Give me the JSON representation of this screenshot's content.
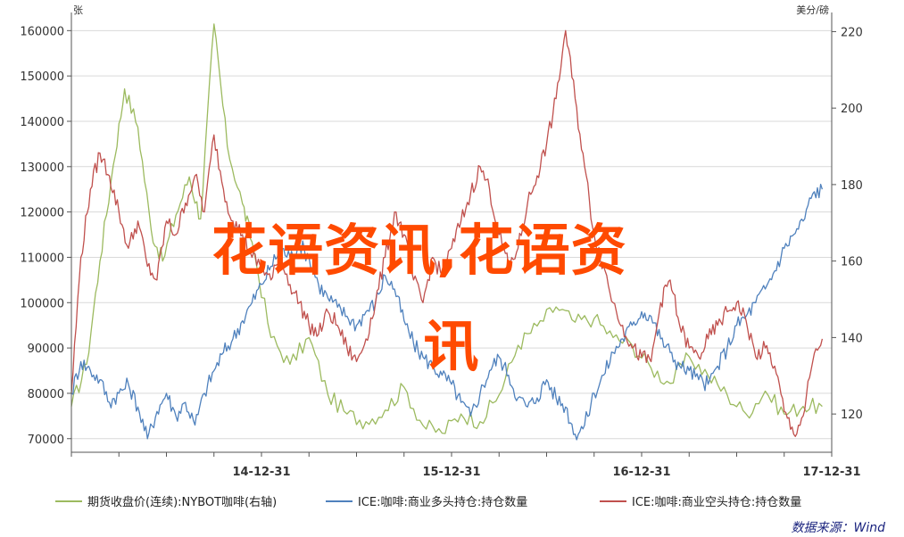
{
  "chart_data": {
    "type": "line",
    "left_axis_unit": "张",
    "right_axis_unit": "美分/磅",
    "yticks_left": [
      "70000",
      "80000",
      "90000",
      "100000",
      "110000",
      "120000",
      "130000",
      "140000",
      "150000",
      "160000"
    ],
    "ylim_left": [
      67000,
      164000
    ],
    "yticks_right": [
      "120",
      "140",
      "160",
      "180",
      "200",
      "220"
    ],
    "ylim_right": [
      110,
      225
    ],
    "xticks": [
      "14-12-31",
      "15-12-31",
      "16-12-31",
      "17-12-31"
    ],
    "xlim": [
      2014.0,
      2018.0
    ],
    "series": [
      {
        "name": "期货收盘价(连续):NYBOT咖啡(右轴)",
        "axis": "right",
        "color": "#9cba5f",
        "x": [
          2014.0,
          2014.08,
          2014.15,
          2014.22,
          2014.28,
          2014.35,
          2014.42,
          2014.48,
          2014.55,
          2014.62,
          2014.68,
          2014.75,
          2014.82,
          2014.9,
          2014.95,
          2015.05,
          2015.15,
          2015.25,
          2015.35,
          2015.45,
          2015.55,
          2015.65,
          2015.75,
          2015.85,
          2015.95,
          2016.05,
          2016.15,
          2016.25,
          2016.35,
          2016.45,
          2016.55,
          2016.65,
          2016.75,
          2016.85,
          2016.95,
          2017.05,
          2017.15,
          2017.25,
          2017.35,
          2017.45,
          2017.55,
          2017.65,
          2017.75,
          2017.85,
          2017.95
        ],
        "values": [
          122,
          133,
          160,
          185,
          205,
          195,
          168,
          160,
          172,
          182,
          171,
          222,
          190,
          175,
          165,
          140,
          133,
          140,
          125,
          120,
          118,
          121,
          127,
          117,
          115,
          120,
          118,
          125,
          138,
          143,
          148,
          144,
          145,
          140,
          138,
          132,
          128,
          135,
          130,
          125,
          120,
          126,
          120,
          122,
          122
        ]
      },
      {
        "name": "ICE:咖啡:商业多头持仓:持仓数量",
        "axis": "left",
        "color": "#4f81bd",
        "x": [
          2014.0,
          2014.05,
          2014.1,
          2014.15,
          2014.2,
          2014.25,
          2014.3,
          2014.35,
          2014.4,
          2014.45,
          2014.5,
          2014.55,
          2014.6,
          2014.65,
          2014.7,
          2014.75,
          2014.8,
          2014.85,
          2014.9,
          2014.95,
          2015.0,
          2015.05,
          2015.1,
          2015.15,
          2015.2,
          2015.25,
          2015.3,
          2015.35,
          2015.4,
          2015.45,
          2015.5,
          2015.55,
          2015.6,
          2015.65,
          2015.7,
          2015.75,
          2015.8,
          2015.85,
          2015.9,
          2015.95,
          2016.0,
          2016.05,
          2016.1,
          2016.15,
          2016.2,
          2016.25,
          2016.3,
          2016.35,
          2016.4,
          2016.45,
          2016.5,
          2016.55,
          2016.6,
          2016.65,
          2016.7,
          2016.75,
          2016.8,
          2016.85,
          2016.9,
          2016.95,
          2017.0,
          2017.05,
          2017.1,
          2017.15,
          2017.2,
          2017.25,
          2017.3,
          2017.35,
          2017.4,
          2017.45,
          2017.5,
          2017.55,
          2017.6,
          2017.65,
          2017.7,
          2017.75,
          2017.8,
          2017.85,
          2017.9,
          2017.95
        ],
        "values": [
          80000,
          87000,
          85000,
          83000,
          78000,
          80000,
          82000,
          77000,
          70000,
          76000,
          80000,
          75000,
          78000,
          73000,
          80000,
          85000,
          89000,
          92000,
          96000,
          100000,
          104000,
          108000,
          112000,
          110000,
          113000,
          110000,
          104000,
          101000,
          99000,
          97000,
          95000,
          98000,
          100000,
          106000,
          103000,
          96000,
          91000,
          88000,
          86000,
          84000,
          82000,
          78000,
          75000,
          80000,
          85000,
          88000,
          84000,
          79000,
          77000,
          79000,
          83000,
          79000,
          77000,
          71000,
          73000,
          80000,
          84000,
          89000,
          92000,
          95000,
          98000,
          97000,
          92000,
          89000,
          86000,
          85000,
          83000,
          82000,
          86000,
          90000,
          95000,
          97000,
          100000,
          103000,
          107000,
          112000,
          115000,
          118000,
          124000,
          125000
        ]
      },
      {
        "name": "ICE:咖啡:商业空头持仓:持仓数量",
        "axis": "left",
        "color": "#c0504d",
        "x": [
          2014.0,
          2014.05,
          2014.1,
          2014.15,
          2014.2,
          2014.25,
          2014.3,
          2014.35,
          2014.4,
          2014.45,
          2014.5,
          2014.55,
          2014.6,
          2014.65,
          2014.7,
          2014.75,
          2014.8,
          2014.85,
          2014.9,
          2014.95,
          2015.0,
          2015.05,
          2015.1,
          2015.15,
          2015.2,
          2015.25,
          2015.3,
          2015.35,
          2015.4,
          2015.45,
          2015.5,
          2015.55,
          2015.6,
          2015.65,
          2015.7,
          2015.75,
          2015.8,
          2015.85,
          2015.9,
          2015.95,
          2016.0,
          2016.05,
          2016.1,
          2016.15,
          2016.2,
          2016.25,
          2016.3,
          2016.35,
          2016.4,
          2016.45,
          2016.5,
          2016.55,
          2016.6,
          2016.65,
          2016.7,
          2016.75,
          2016.8,
          2016.85,
          2016.9,
          2016.95,
          2017.0,
          2017.05,
          2017.1,
          2017.15,
          2017.2,
          2017.25,
          2017.3,
          2017.35,
          2017.4,
          2017.45,
          2017.5,
          2017.55,
          2017.6,
          2017.65,
          2017.7,
          2017.75,
          2017.8,
          2017.85,
          2017.9,
          2017.95
        ],
        "values": [
          80000,
          110000,
          125000,
          133000,
          128000,
          120000,
          112000,
          118000,
          108000,
          105000,
          118000,
          115000,
          122000,
          128000,
          120000,
          137000,
          125000,
          118000,
          115000,
          110000,
          108000,
          105000,
          110000,
          104000,
          100000,
          95000,
          93000,
          98000,
          95000,
          90000,
          87000,
          92000,
          100000,
          110000,
          120000,
          115000,
          105000,
          100000,
          110000,
          106000,
          112000,
          118000,
          124000,
          130000,
          125000,
          115000,
          108000,
          112000,
          122000,
          128000,
          135000,
          145000,
          160000,
          145000,
          130000,
          115000,
          108000,
          100000,
          95000,
          90000,
          88000,
          87000,
          100000,
          105000,
          95000,
          90000,
          88000,
          92000,
          95000,
          98000,
          100000,
          96000,
          88000,
          90000,
          86000,
          76000,
          71000,
          75000,
          87000,
          92000
        ]
      }
    ]
  },
  "watermark": {
    "line1": "花语资讯,花语资",
    "line2": "讯"
  },
  "source": "数据来源：Wind"
}
